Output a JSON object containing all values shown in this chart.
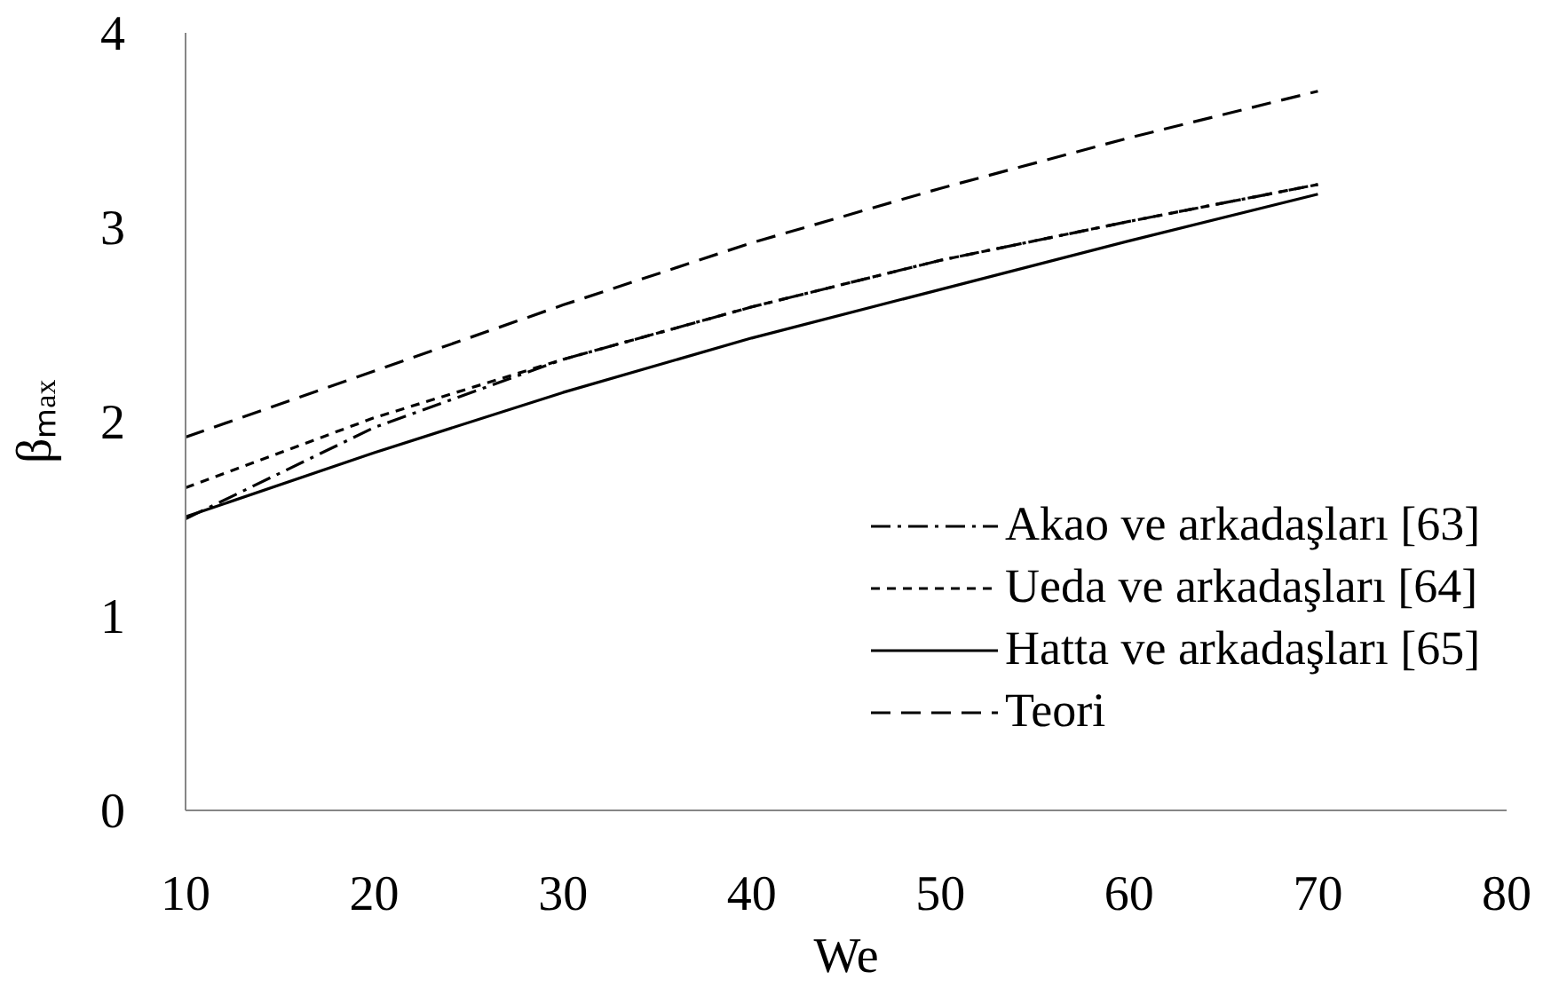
{
  "chart_data": {
    "type": "line",
    "xlabel": "We",
    "ylabel": "βₘₐₓ",
    "x": [
      10,
      20,
      30,
      40,
      50,
      60,
      70
    ],
    "xlim": [
      10,
      80
    ],
    "xticks": [
      10,
      20,
      30,
      40,
      50,
      60,
      70,
      80
    ],
    "ylim": [
      0,
      4
    ],
    "yticks": [
      0,
      1,
      2,
      3,
      4
    ],
    "legend": "bottom right",
    "series": [
      {
        "name": "Akao ve arkadaşları [63]",
        "color": "#000000",
        "line_style": "dashdot",
        "values": [
          1.5,
          1.97,
          2.32,
          2.59,
          2.83,
          3.03,
          3.22
        ]
      },
      {
        "name": "Ueda ve arkadaşları [64]",
        "color": "#000000",
        "line_style": "dotted",
        "values": [
          1.66,
          2.02,
          2.32,
          2.59,
          2.83,
          3.03,
          3.22
        ]
      },
      {
        "name": "Hatta ve arkadaşları [65]",
        "color": "#000000",
        "line_style": "solid",
        "values": [
          1.51,
          1.84,
          2.15,
          2.43,
          2.68,
          2.93,
          3.17
        ]
      },
      {
        "name": "Teori",
        "color": "#000000",
        "line_style": "dashed",
        "values": [
          1.92,
          2.26,
          2.6,
          2.92,
          3.2,
          3.46,
          3.7
        ]
      }
    ]
  }
}
